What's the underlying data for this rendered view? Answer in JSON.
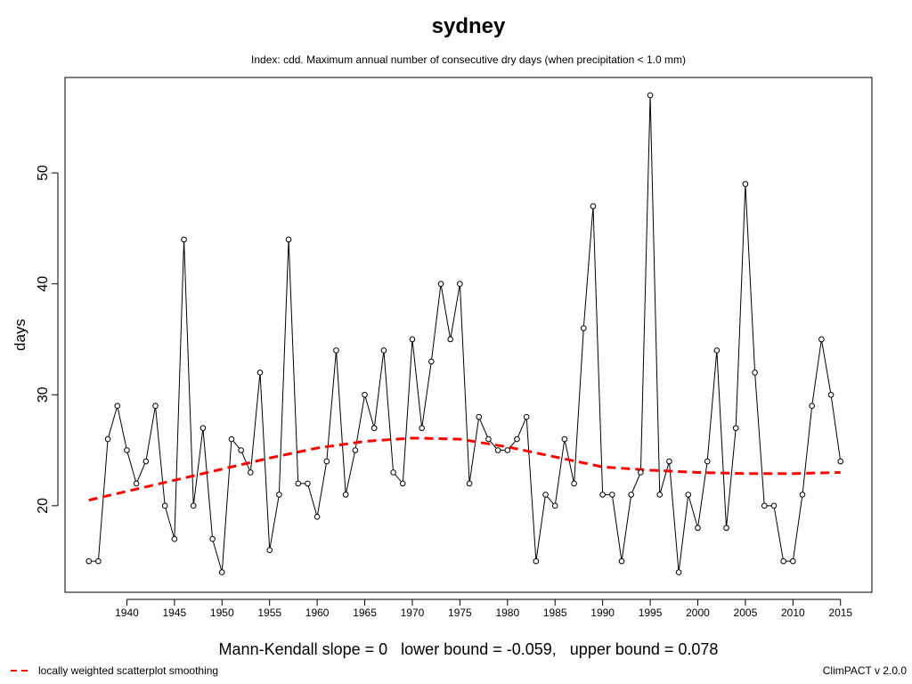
{
  "chart_data": {
    "type": "line",
    "title": "sydney",
    "subtitle": "Index: cdd. Maximum annual number of consecutive dry days (when precipitation < 1.0 mm)",
    "xlabel": "",
    "ylabel": "days",
    "xlim": [
      1933.5,
      2018.3
    ],
    "ylim": [
      12.2,
      58.6
    ],
    "x_ticks": [
      1940,
      1945,
      1950,
      1955,
      1960,
      1965,
      1970,
      1975,
      1980,
      1985,
      1990,
      1995,
      2000,
      2005,
      2010,
      2015
    ],
    "y_ticks": [
      20,
      30,
      40,
      50
    ],
    "grid": false,
    "series": [
      {
        "style": "line-with-open-circles",
        "color": "#000000",
        "x": [
          1936,
          1937,
          1938,
          1939,
          1940,
          1941,
          1942,
          1943,
          1944,
          1945,
          1946,
          1947,
          1948,
          1949,
          1950,
          1951,
          1952,
          1953,
          1954,
          1955,
          1956,
          1957,
          1958,
          1959,
          1960,
          1961,
          1962,
          1963,
          1964,
          1965,
          1966,
          1967,
          1968,
          1969,
          1970,
          1971,
          1972,
          1973,
          1974,
          1975,
          1976,
          1977,
          1978,
          1979,
          1980,
          1981,
          1982,
          1983,
          1984,
          1985,
          1986,
          1987,
          1988,
          1989,
          1990,
          1991,
          1992,
          1993,
          1994,
          1995,
          1996,
          1997,
          1998,
          1999,
          2000,
          2001,
          2002,
          2003,
          2004,
          2005,
          2006,
          2007,
          2008,
          2009,
          2010,
          2011,
          2012,
          2013,
          2014,
          2015
        ],
        "values": [
          15,
          15,
          26,
          29,
          25,
          22,
          24,
          29,
          20,
          17,
          44,
          20,
          27,
          17,
          14,
          26,
          25,
          23,
          32,
          16,
          21,
          44,
          22,
          22,
          19,
          24,
          34,
          21,
          25,
          30,
          27,
          34,
          23,
          22,
          35,
          27,
          33,
          40,
          35,
          40,
          22,
          28,
          26,
          25,
          25,
          26,
          28,
          15,
          21,
          20,
          26,
          22,
          36,
          47,
          21,
          21,
          15,
          21,
          23,
          57,
          21,
          24,
          14,
          21,
          18,
          24,
          34,
          18,
          27,
          49,
          32,
          20,
          20,
          15,
          15,
          21,
          29,
          35,
          30,
          24
        ]
      },
      {
        "name": "locally weighted scatterplot smoothing",
        "style": "dashed",
        "color": "#ff0000",
        "x": [
          1936,
          1940,
          1945,
          1950,
          1955,
          1960,
          1965,
          1970,
          1975,
          1980,
          1985,
          1990,
          1995,
          2000,
          2005,
          2010,
          2015
        ],
        "values": [
          20.5,
          21.3,
          22.3,
          23.3,
          24.3,
          25.2,
          25.8,
          26.1,
          26.0,
          25.3,
          24.4,
          23.5,
          23.2,
          23.0,
          22.9,
          22.9,
          23.0
        ]
      }
    ],
    "annotation": "Mann-Kendall slope = 0   lower bound = -0.059,   upper bound = 0.078",
    "footer_right": "ClimPACT v 2.0.0",
    "legend_position": "bottom-left"
  }
}
